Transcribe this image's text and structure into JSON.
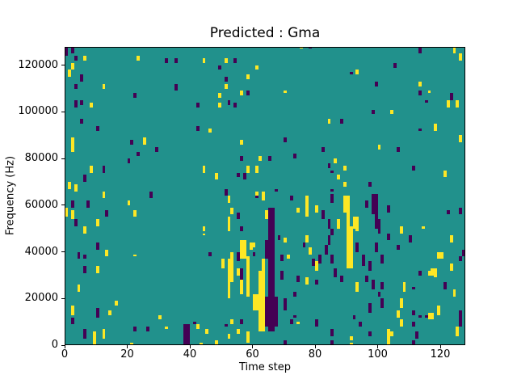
{
  "figure": {
    "background": "#ffffff"
  },
  "chart_data": {
    "type": "heatmap",
    "title": "Predicted : Gma",
    "xlabel": "Time step",
    "ylabel": "Frequency (Hz)",
    "x_range": [
      0,
      128
    ],
    "y_range_hz": [
      0,
      128000
    ],
    "x_ticks": [
      0,
      20,
      40,
      60,
      80,
      100,
      120
    ],
    "y_ticks": [
      0,
      20000,
      40000,
      60000,
      80000,
      100000,
      120000
    ],
    "grid": {
      "cols": 128,
      "rows": 128,
      "hz_per_row": 1000,
      "gridlines": false,
      "legend": "none"
    },
    "colormap": {
      "name": "viridis-3-level",
      "low": "#440154",
      "mid": "#21918c",
      "high": "#fde725"
    },
    "cells": {
      "format": "[time_step, freq_bin_low, freq_bin_high] inclusive; freq_bin = Hz/1000; mid color fills all unlisted cells",
      "low_runs": [
        [
          0,
          124,
          127
        ],
        [
          2,
          125,
          127
        ],
        [
          3,
          122,
          123
        ],
        [
          5,
          113,
          115
        ],
        [
          3,
          110,
          111
        ],
        [
          3,
          102,
          104
        ],
        [
          5,
          103,
          104
        ],
        [
          5,
          95,
          96
        ],
        [
          10,
          92,
          93
        ],
        [
          22,
          106,
          107
        ],
        [
          21,
          86,
          87
        ],
        [
          23,
          81,
          82
        ],
        [
          20,
          78,
          79
        ],
        [
          29,
          83,
          84
        ],
        [
          27,
          63,
          65
        ],
        [
          2,
          59,
          61
        ],
        [
          7,
          59,
          61
        ],
        [
          13,
          55,
          57
        ],
        [
          3,
          51,
          53
        ],
        [
          10,
          41,
          43
        ],
        [
          4,
          37,
          39
        ],
        [
          6,
          37,
          38
        ],
        [
          6,
          31,
          33
        ],
        [
          2,
          9,
          11
        ],
        [
          10,
          12,
          15
        ],
        [
          6,
          3,
          6
        ],
        [
          22,
          6,
          7
        ],
        [
          26,
          6,
          7
        ],
        [
          6,
          70,
          72
        ],
        [
          12,
          74,
          76
        ],
        [
          32,
          121,
          122
        ],
        [
          35,
          121,
          122
        ],
        [
          35,
          109,
          111
        ],
        [
          42,
          102,
          103
        ],
        [
          42,
          92,
          93
        ],
        [
          49,
          118,
          119
        ],
        [
          51,
          113,
          114
        ],
        [
          54,
          121,
          122
        ],
        [
          52,
          103,
          104
        ],
        [
          54,
          102,
          103
        ],
        [
          58,
          107,
          108
        ],
        [
          51,
          64,
          66
        ],
        [
          55,
          54,
          56
        ],
        [
          57,
          71,
          73
        ],
        [
          61,
          63,
          65
        ],
        [
          56,
          79,
          80
        ],
        [
          55,
          72,
          73
        ],
        [
          38,
          0,
          8
        ],
        [
          39,
          0,
          8
        ],
        [
          41,
          9,
          9
        ],
        [
          46,
          38,
          39
        ],
        [
          51,
          8,
          8
        ],
        [
          55,
          36,
          39
        ],
        [
          56,
          28,
          32
        ],
        [
          60,
          38,
          39
        ],
        [
          56,
          9,
          10
        ],
        [
          56,
          49,
          50
        ],
        [
          64,
          37,
          44
        ],
        [
          64,
          8,
          20
        ],
        [
          65,
          6,
          58
        ],
        [
          66,
          6,
          58
        ],
        [
          67,
          8,
          20
        ],
        [
          65,
          79,
          80
        ],
        [
          67,
          66,
          66
        ],
        [
          68,
          45,
          46
        ],
        [
          69,
          36,
          38
        ],
        [
          69,
          28,
          31
        ],
        [
          70,
          15,
          19
        ],
        [
          70,
          0,
          1
        ],
        [
          70,
          87,
          88
        ],
        [
          72,
          62,
          63
        ],
        [
          72,
          9,
          10
        ],
        [
          73,
          80,
          81
        ],
        [
          73,
          21,
          22
        ],
        [
          73,
          12,
          12
        ],
        [
          74,
          27,
          29
        ],
        [
          76,
          42,
          43
        ],
        [
          78,
          127,
          127
        ],
        [
          79,
          34,
          36
        ],
        [
          80,
          26,
          27
        ],
        [
          80,
          8,
          10
        ],
        [
          81,
          35,
          38
        ],
        [
          82,
          54,
          57
        ],
        [
          82,
          83,
          84
        ],
        [
          83,
          39,
          42
        ],
        [
          84,
          50,
          53
        ],
        [
          84,
          43,
          46
        ],
        [
          84,
          76,
          77
        ],
        [
          85,
          47,
          49
        ],
        [
          85,
          35,
          38
        ],
        [
          85,
          74,
          74
        ],
        [
          85,
          66,
          66
        ],
        [
          85,
          61,
          64
        ],
        [
          85,
          4,
          6
        ],
        [
          85,
          0,
          1
        ],
        [
          86,
          29,
          32
        ],
        [
          88,
          95,
          96
        ],
        [
          88,
          27,
          29
        ],
        [
          91,
          116,
          116
        ],
        [
          92,
          11,
          12
        ],
        [
          93,
          40,
          43
        ],
        [
          94,
          8,
          9
        ],
        [
          95,
          34,
          38
        ],
        [
          96,
          59,
          61
        ],
        [
          96,
          27,
          29
        ],
        [
          97,
          32,
          35
        ],
        [
          97,
          14,
          17
        ],
        [
          97,
          4,
          5
        ],
        [
          97,
          68,
          69
        ],
        [
          98,
          99,
          100
        ],
        [
          98,
          24,
          27
        ],
        [
          98,
          56,
          64
        ],
        [
          99,
          111,
          112
        ],
        [
          99,
          50,
          64
        ],
        [
          99,
          40,
          43
        ],
        [
          100,
          48,
          53
        ],
        [
          100,
          21,
          22
        ],
        [
          101,
          35,
          38
        ],
        [
          101,
          24,
          26
        ],
        [
          101,
          16,
          19
        ],
        [
          103,
          45,
          47
        ],
        [
          103,
          57,
          59
        ],
        [
          105,
          119,
          120
        ],
        [
          106,
          83,
          84
        ],
        [
          106,
          41,
          42
        ],
        [
          110,
          44,
          46
        ],
        [
          111,
          75,
          76
        ],
        [
          111,
          24,
          24
        ],
        [
          111,
          13,
          14
        ],
        [
          111,
          8,
          9
        ],
        [
          111,
          0,
          1
        ],
        [
          112,
          3,
          5
        ],
        [
          113,
          125,
          127
        ],
        [
          113,
          107,
          108
        ],
        [
          113,
          92,
          92
        ],
        [
          113,
          30,
          31
        ],
        [
          113,
          12,
          12
        ],
        [
          115,
          104,
          104
        ],
        [
          115,
          12,
          12
        ],
        [
          121,
          24,
          26
        ],
        [
          122,
          56,
          57
        ],
        [
          123,
          105,
          107
        ],
        [
          126,
          56,
          58
        ],
        [
          126,
          36,
          37
        ],
        [
          126,
          8,
          14
        ],
        [
          127,
          38,
          40
        ]
      ],
      "high_runs": [
        [
          1,
          115,
          117
        ],
        [
          2,
          118,
          120
        ],
        [
          6,
          122,
          123
        ],
        [
          23,
          122,
          123
        ],
        [
          12,
          110,
          111
        ],
        [
          8,
          102,
          103
        ],
        [
          2,
          83,
          88
        ],
        [
          25,
          86,
          88
        ],
        [
          8,
          74,
          76
        ],
        [
          1,
          67,
          69
        ],
        [
          3,
          66,
          68
        ],
        [
          12,
          63,
          65
        ],
        [
          0,
          55,
          58
        ],
        [
          2,
          54,
          57
        ],
        [
          6,
          48,
          50
        ],
        [
          10,
          51,
          53
        ],
        [
          20,
          60,
          61
        ],
        [
          22,
          55,
          57
        ],
        [
          13,
          38,
          40
        ],
        [
          22,
          38,
          38
        ],
        [
          10,
          31,
          33
        ],
        [
          4,
          23,
          25
        ],
        [
          2,
          13,
          16
        ],
        [
          16,
          17,
          18
        ],
        [
          14,
          13,
          14
        ],
        [
          9,
          2,
          5
        ],
        [
          12,
          3,
          6
        ],
        [
          9,
          0,
          1
        ],
        [
          21,
          0,
          0
        ],
        [
          30,
          11,
          12
        ],
        [
          32,
          7,
          7
        ],
        [
          44,
          121,
          122
        ],
        [
          51,
          121,
          122
        ],
        [
          51,
          110,
          111
        ],
        [
          49,
          106,
          107
        ],
        [
          49,
          102,
          103
        ],
        [
          56,
          107,
          108
        ],
        [
          58,
          114,
          115
        ],
        [
          61,
          118,
          119
        ],
        [
          46,
          91,
          92
        ],
        [
          56,
          86,
          87
        ],
        [
          44,
          74,
          76
        ],
        [
          48,
          71,
          73
        ],
        [
          58,
          74,
          76
        ],
        [
          61,
          74,
          76
        ],
        [
          62,
          79,
          80
        ],
        [
          61,
          64,
          65
        ],
        [
          63,
          62,
          65
        ],
        [
          64,
          54,
          57
        ],
        [
          43,
          0,
          0
        ],
        [
          42,
          7,
          8
        ],
        [
          44,
          49,
          50
        ],
        [
          44,
          47,
          47
        ],
        [
          45,
          5,
          6
        ],
        [
          48,
          0,
          1
        ],
        [
          50,
          33,
          36
        ],
        [
          52,
          49,
          54
        ],
        [
          52,
          61,
          63
        ],
        [
          53,
          56,
          58
        ],
        [
          52,
          20,
          36
        ],
        [
          53,
          27,
          39
        ],
        [
          55,
          30,
          32
        ],
        [
          56,
          37,
          44
        ],
        [
          57,
          37,
          44
        ],
        [
          56,
          22,
          27
        ],
        [
          58,
          21,
          37
        ],
        [
          59,
          41,
          43
        ],
        [
          60,
          42,
          43
        ],
        [
          60,
          15,
          21
        ],
        [
          61,
          15,
          21
        ],
        [
          62,
          26,
          31
        ],
        [
          62,
          6,
          28
        ],
        [
          63,
          6,
          28
        ],
        [
          63,
          29,
          36
        ],
        [
          53,
          9,
          10
        ],
        [
          55,
          5,
          6
        ],
        [
          52,
          3,
          4
        ],
        [
          58,
          1,
          5
        ],
        [
          70,
          44,
          45
        ],
        [
          70,
          108,
          108
        ],
        [
          71,
          37,
          38
        ],
        [
          74,
          57,
          58
        ],
        [
          74,
          9,
          9
        ],
        [
          75,
          127,
          127
        ],
        [
          77,
          55,
          63
        ],
        [
          77,
          44,
          46
        ],
        [
          77,
          26,
          28
        ],
        [
          78,
          39,
          41
        ],
        [
          80,
          57,
          59
        ],
        [
          80,
          32,
          35
        ],
        [
          84,
          95,
          96
        ],
        [
          86,
          78,
          79
        ],
        [
          87,
          71,
          72
        ],
        [
          87,
          50,
          53
        ],
        [
          89,
          75,
          76
        ],
        [
          89,
          68,
          69
        ],
        [
          89,
          57,
          63
        ],
        [
          90,
          33,
          63
        ],
        [
          91,
          33,
          50
        ],
        [
          92,
          50,
          54
        ],
        [
          93,
          49,
          54
        ],
        [
          93,
          23,
          26
        ],
        [
          93,
          116,
          117
        ],
        [
          91,
          2,
          3
        ],
        [
          91,
          0,
          0
        ],
        [
          100,
          84,
          85
        ],
        [
          103,
          2,
          6
        ],
        [
          104,
          4,
          5
        ],
        [
          103,
          0,
          1
        ],
        [
          104,
          99,
          100
        ],
        [
          107,
          48,
          50
        ],
        [
          107,
          16,
          19
        ],
        [
          106,
          12,
          14
        ],
        [
          107,
          8,
          10
        ],
        [
          108,
          23,
          26
        ],
        [
          113,
          111,
          112
        ],
        [
          114,
          50,
          50
        ],
        [
          116,
          108,
          108
        ],
        [
          116,
          30,
          31
        ],
        [
          117,
          30,
          32
        ],
        [
          118,
          29,
          32
        ],
        [
          116,
          11,
          13
        ],
        [
          117,
          11,
          13
        ],
        [
          118,
          92,
          94
        ],
        [
          119,
          37,
          39
        ],
        [
          120,
          37,
          39
        ],
        [
          119,
          13,
          16
        ],
        [
          121,
          72,
          74
        ],
        [
          122,
          102,
          104
        ],
        [
          123,
          44,
          46
        ],
        [
          123,
          32,
          34
        ],
        [
          124,
          21,
          23
        ],
        [
          124,
          125,
          127
        ],
        [
          125,
          102,
          104
        ],
        [
          125,
          4,
          7
        ],
        [
          126,
          87,
          89
        ],
        [
          126,
          122,
          124
        ]
      ]
    }
  }
}
